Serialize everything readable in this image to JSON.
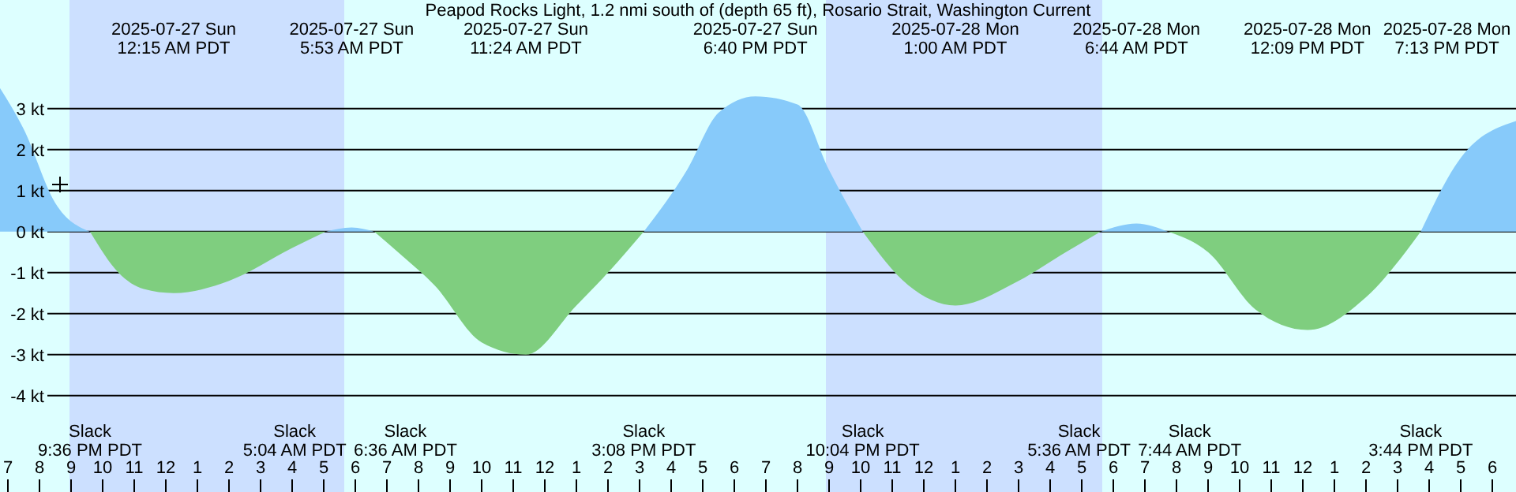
{
  "chart_data": {
    "type": "area",
    "title": "Peapod Rocks Light, 1.2 nmi south of (depth 65 ft), Rosario Strait, Washington Current",
    "x": [
      "2025-07-26T18:45",
      "2025-07-26T19:30",
      "2025-07-26T20:30",
      "2025-07-26T21:36",
      "2025-07-26T22:30",
      "2025-07-26T23:18",
      "2025-07-27T00:15",
      "2025-07-27T02:00",
      "2025-07-27T04:00",
      "2025-07-27T05:04",
      "2025-07-27T05:53",
      "2025-07-27T06:36",
      "2025-07-27T07:30",
      "2025-07-27T08:30",
      "2025-07-27T10:00",
      "2025-07-27T11:24",
      "2025-07-27T13:00",
      "2025-07-27T14:00",
      "2025-07-27T15:08",
      "2025-07-27T16:30",
      "2025-07-27T17:30",
      "2025-07-27T18:40",
      "2025-07-27T20:00",
      "2025-07-27T21:00",
      "2025-07-27T22:04",
      "2025-07-27T23:30",
      "2025-07-28T01:00",
      "2025-07-28T03:00",
      "2025-07-28T04:30",
      "2025-07-28T05:36",
      "2025-07-28T06:44",
      "2025-07-28T07:44",
      "2025-07-28T09:00",
      "2025-07-28T10:30",
      "2025-07-28T12:09",
      "2025-07-28T14:00",
      "2025-07-28T15:44",
      "2025-07-28T17:00",
      "2025-07-28T18:45"
    ],
    "series": [
      {
        "color": "#87cafa",
        "values": [
          3.5,
          2.5,
          0.7,
          0,
          null,
          null,
          null,
          null,
          null,
          0,
          0.1,
          0,
          null,
          null,
          null,
          null,
          null,
          null,
          0,
          1.5,
          2.9,
          3.3,
          3.1,
          1.5,
          0,
          null,
          null,
          null,
          null,
          0,
          0.2,
          0,
          null,
          null,
          null,
          null,
          0,
          1.8,
          2.7
        ]
      },
      {
        "color": "#7fce7f",
        "values": [
          null,
          null,
          null,
          0,
          -1.0,
          -1.4,
          -1.5,
          -1.2,
          -0.4,
          0,
          null,
          0,
          -0.6,
          -1.3,
          -2.7,
          -3.0,
          -1.8,
          -1.0,
          0,
          null,
          null,
          null,
          null,
          null,
          0,
          -1.3,
          -1.8,
          -1.2,
          -0.5,
          0,
          null,
          0,
          -0.5,
          -1.9,
          -2.4,
          -1.6,
          0,
          null,
          null
        ]
      }
    ],
    "xlim": [
      "2025-07-26T18:45",
      "2025-07-28T18:45"
    ],
    "xticks": [
      {
        "value": "2025-07-26T19:00",
        "label": "7"
      },
      {
        "value": "2025-07-26T20:00",
        "label": "8"
      },
      {
        "value": "2025-07-26T21:00",
        "label": "9"
      },
      {
        "value": "2025-07-26T22:00",
        "label": "10"
      },
      {
        "value": "2025-07-26T23:00",
        "label": "11"
      },
      {
        "value": "2025-07-27T00:00",
        "label": "12"
      },
      {
        "value": "2025-07-27T01:00",
        "label": "1"
      },
      {
        "value": "2025-07-27T02:00",
        "label": "2"
      },
      {
        "value": "2025-07-27T03:00",
        "label": "3"
      },
      {
        "value": "2025-07-27T04:00",
        "label": "4"
      },
      {
        "value": "2025-07-27T05:00",
        "label": "5"
      },
      {
        "value": "2025-07-27T06:00",
        "label": "6"
      },
      {
        "value": "2025-07-27T07:00",
        "label": "7"
      },
      {
        "value": "2025-07-27T08:00",
        "label": "8"
      },
      {
        "value": "2025-07-27T09:00",
        "label": "9"
      },
      {
        "value": "2025-07-27T10:00",
        "label": "10"
      },
      {
        "value": "2025-07-27T11:00",
        "label": "11"
      },
      {
        "value": "2025-07-27T12:00",
        "label": "12"
      },
      {
        "value": "2025-07-27T13:00",
        "label": "1"
      },
      {
        "value": "2025-07-27T14:00",
        "label": "2"
      },
      {
        "value": "2025-07-27T15:00",
        "label": "3"
      },
      {
        "value": "2025-07-27T16:00",
        "label": "4"
      },
      {
        "value": "2025-07-27T17:00",
        "label": "5"
      },
      {
        "value": "2025-07-27T18:00",
        "label": "6"
      },
      {
        "value": "2025-07-27T19:00",
        "label": "7"
      },
      {
        "value": "2025-07-27T20:00",
        "label": "8"
      },
      {
        "value": "2025-07-27T21:00",
        "label": "9"
      },
      {
        "value": "2025-07-27T22:00",
        "label": "10"
      },
      {
        "value": "2025-07-27T23:00",
        "label": "11"
      },
      {
        "value": "2025-07-28T00:00",
        "label": "12"
      },
      {
        "value": "2025-07-28T01:00",
        "label": "1"
      },
      {
        "value": "2025-07-28T02:00",
        "label": "2"
      },
      {
        "value": "2025-07-28T03:00",
        "label": "3"
      },
      {
        "value": "2025-07-28T04:00",
        "label": "4"
      },
      {
        "value": "2025-07-28T05:00",
        "label": "5"
      },
      {
        "value": "2025-07-28T06:00",
        "label": "6"
      },
      {
        "value": "2025-07-28T07:00",
        "label": "7"
      },
      {
        "value": "2025-07-28T08:00",
        "label": "8"
      },
      {
        "value": "2025-07-28T09:00",
        "label": "9"
      },
      {
        "value": "2025-07-28T10:00",
        "label": "10"
      },
      {
        "value": "2025-07-28T11:00",
        "label": "11"
      },
      {
        "value": "2025-07-28T12:00",
        "label": "12"
      },
      {
        "value": "2025-07-28T13:00",
        "label": "1"
      },
      {
        "value": "2025-07-28T14:00",
        "label": "2"
      },
      {
        "value": "2025-07-28T15:00",
        "label": "3"
      },
      {
        "value": "2025-07-28T16:00",
        "label": "4"
      },
      {
        "value": "2025-07-28T17:00",
        "label": "5"
      },
      {
        "value": "2025-07-28T18:00",
        "label": "6"
      }
    ],
    "ylim": [
      -6.35,
      5.65
    ],
    "yticks": [
      {
        "value": 3,
        "label": "3 kt"
      },
      {
        "value": 2,
        "label": "2 kt"
      },
      {
        "value": 1,
        "label": "1 kt"
      },
      {
        "value": 0,
        "label": "0 kt"
      },
      {
        "value": -1,
        "label": "-1 kt"
      },
      {
        "value": -2,
        "label": "-2 kt"
      },
      {
        "value": -3,
        "label": "-3 kt"
      },
      {
        "value": -4,
        "label": "-4 kt"
      }
    ],
    "grid": "y",
    "bands": [
      {
        "axis": "x",
        "from": "2025-07-26T20:57",
        "to": "2025-07-27T05:39",
        "color": "#cce0ff"
      },
      {
        "axis": "x",
        "from": "2025-07-27T20:54",
        "to": "2025-07-28T05:39",
        "color": "#cce0ff"
      }
    ],
    "annotations": [
      "2025-07-27 Sun\n12:15 AM PDT",
      "2025-07-27 Sun\n5:53 AM PDT",
      "2025-07-27 Sun\n11:24 AM PDT",
      "2025-07-27 Sun\n6:40 PM PDT",
      "2025-07-28 Mon\n1:00 AM PDT",
      "2025-07-28 Mon\n6:44 AM PDT",
      "2025-07-28 Mon\n12:09 PM PDT",
      "2025-07-28 Mon\n7:13 PM PDT",
      "Slack\n9:36 PM PDT",
      "Slack\n5:04 AM PDT",
      "Slack\n6:36 AM PDT",
      "Slack\n3:08 PM PDT",
      "Slack\n10:04 PM PDT",
      "Slack\n5:36 AM PDT",
      "Slack\n7:44 AM PDT",
      "Slack\n3:44 PM PDT"
    ]
  }
}
